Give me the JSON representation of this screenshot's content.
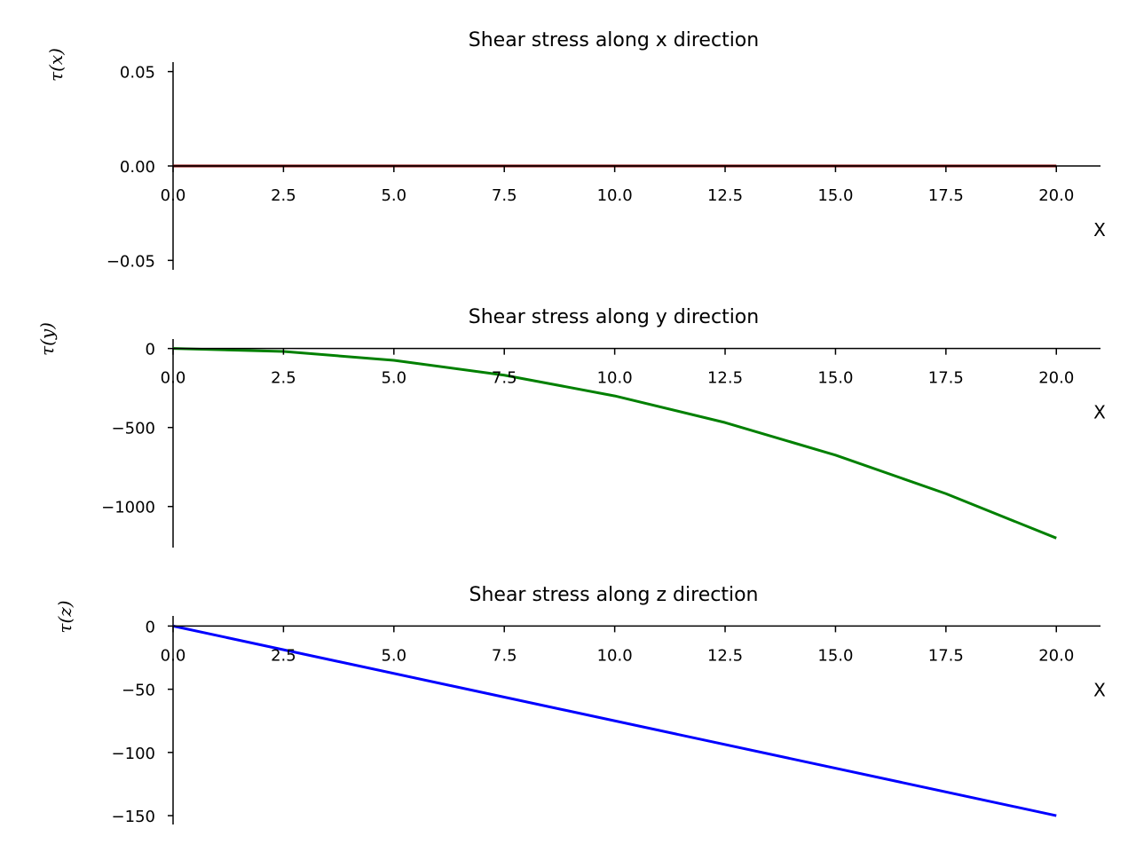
{
  "chart_data": [
    {
      "type": "line",
      "title": "Shear stress along x direction",
      "xlabel": "X",
      "ylabel": "τ(x)",
      "x_ticks": [
        "0.0",
        "2.5",
        "5.0",
        "7.5",
        "10.0",
        "12.5",
        "15.0",
        "17.5",
        "20.0"
      ],
      "y_ticks": [
        {
          "value": 0.05,
          "label": "0.05"
        },
        {
          "value": 0,
          "label": "0.00"
        },
        {
          "value": -0.05,
          "label": "−0.05"
        }
      ],
      "xlim": [
        0,
        21
      ],
      "ylim": [
        -0.055,
        0.055
      ],
      "series": [
        {
          "color": "#8b0000",
          "x": [
            0,
            20
          ],
          "y": [
            0,
            0
          ]
        }
      ]
    },
    {
      "type": "line",
      "title": "Shear stress along y direction",
      "xlabel": "X",
      "ylabel": "τ(y)",
      "x_ticks": [
        "0.0",
        "2.5",
        "5.0",
        "7.5",
        "10.0",
        "12.5",
        "15.0",
        "17.5",
        "20.0"
      ],
      "y_ticks": [
        {
          "value": 0,
          "label": "0"
        },
        {
          "value": -500,
          "label": "−500"
        },
        {
          "value": -1000,
          "label": "−1000"
        }
      ],
      "xlim": [
        0,
        21
      ],
      "ylim": [
        -1260,
        60
      ],
      "series": [
        {
          "color": "#008000",
          "x": [
            0,
            2.5,
            5,
            7.5,
            10,
            12.5,
            15,
            17.5,
            20
          ],
          "y": [
            0,
            -18.75,
            -75,
            -168.75,
            -300,
            -468.75,
            -675,
            -918.75,
            -1200
          ]
        }
      ]
    },
    {
      "type": "line",
      "title": "Shear stress along z direction",
      "xlabel": "X",
      "ylabel": "τ(z)",
      "x_ticks": [
        "0.0",
        "2.5",
        "5.0",
        "7.5",
        "10.0",
        "12.5",
        "15.0",
        "17.5",
        "20.0"
      ],
      "y_ticks": [
        {
          "value": 0,
          "label": "0"
        },
        {
          "value": -50,
          "label": "−50"
        },
        {
          "value": -100,
          "label": "−100"
        },
        {
          "value": -150,
          "label": "−150"
        }
      ],
      "xlim": [
        0,
        21
      ],
      "ylim": [
        -157,
        8
      ],
      "series": [
        {
          "color": "#0000ff",
          "x": [
            0,
            20
          ],
          "y": [
            0,
            -150
          ]
        }
      ]
    }
  ]
}
